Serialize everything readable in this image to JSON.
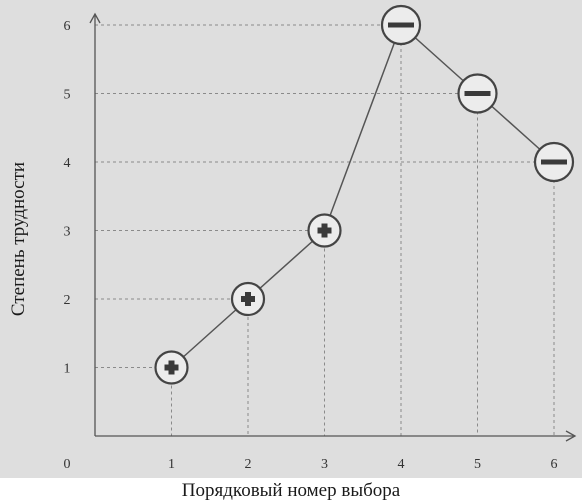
{
  "chart_data": {
    "type": "line",
    "title": "",
    "xlabel": "Порядковый номер выбора",
    "ylabel": "Степень трудности",
    "origin_label": "0",
    "x_ticks": [
      "1",
      "2",
      "3",
      "4",
      "5",
      "6"
    ],
    "y_ticks": [
      "1",
      "2",
      "3",
      "4",
      "5",
      "6"
    ],
    "x": [
      1,
      2,
      3,
      4,
      5,
      6
    ],
    "y": [
      1,
      2,
      3,
      6,
      5,
      4
    ],
    "markers": [
      "plus",
      "plus",
      "plus",
      "minus",
      "minus",
      "minus"
    ],
    "xlim": [
      0,
      6.3
    ],
    "ylim": [
      0,
      6.6
    ],
    "grid": "dashed guides to each point",
    "colors": {
      "background": "#dedede",
      "line": "#555555",
      "marker_fill": "#ececec",
      "marker_stroke": "#444444",
      "symbol": "#3a3a3a"
    }
  }
}
